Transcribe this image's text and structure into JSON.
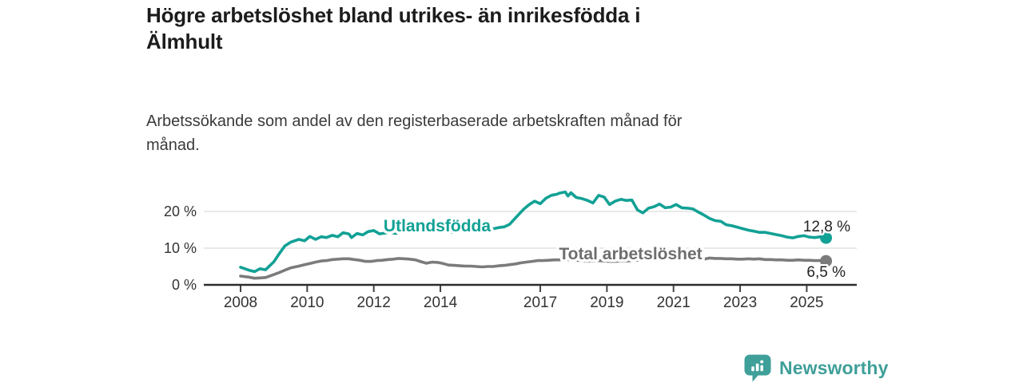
{
  "header": {
    "title_lines": [
      "Högre arbetslöshet bland utrikes- än inrikesfödda i",
      "Älmhult"
    ],
    "subtitle_lines": [
      "Arbetssökande som andel av den registerbaserade arbetskraften månad för",
      "månad."
    ]
  },
  "footer": {
    "brand": "Newsworthy",
    "logo_icon": "bar-chart-speech-bubble-icon",
    "brand_color": "#3f9f99"
  },
  "chart_data": {
    "type": "line",
    "title": "Högre arbetslöshet bland utrikes- än inrikesfödda i Älmhult",
    "subtitle": "Arbetssökande som andel av den registerbaserade arbetskraften månad för månad.",
    "xlabel": "",
    "ylabel": "",
    "grid": "horizontal-only",
    "legend_position": "inline-on-lines",
    "x_ticks": [
      2008,
      2010,
      2012,
      2014,
      2017,
      2019,
      2021,
      2023,
      2025
    ],
    "x_tick_labels": [
      "2008",
      "2010",
      "2012",
      "2014",
      "2017",
      "2019",
      "2021",
      "2023",
      "2025"
    ],
    "y_ticks": [
      0,
      10,
      20
    ],
    "y_tick_labels": [
      "0 %",
      "10 %",
      "20 %"
    ],
    "xlim": [
      2007.85,
      2026.5
    ],
    "ylim": [
      0,
      27
    ],
    "axis_color": "#2b2b2b",
    "gridline_color": "#dcdcdc",
    "series": [
      {
        "name": "Utlandsfödda",
        "color": "#12a195",
        "end_label": "12,8 %",
        "final_value": 12.8,
        "x": [
          2008.0,
          2008.25,
          2008.42,
          2008.58,
          2008.75,
          2009.0,
          2009.17,
          2009.33,
          2009.5,
          2009.75,
          2009.92,
          2010.08,
          2010.25,
          2010.42,
          2010.58,
          2010.75,
          2010.92,
          2011.08,
          2011.25,
          2011.33,
          2011.5,
          2011.67,
          2011.83,
          2012.0,
          2012.17,
          2012.33,
          2012.5,
          2012.67,
          2012.83,
          2013.0,
          2013.17,
          2013.33,
          2013.5,
          2013.67,
          2013.83,
          2014.0,
          2014.25,
          2014.5,
          2014.75,
          2015.0,
          2015.25,
          2015.5,
          2015.75,
          2015.92,
          2016.08,
          2016.25,
          2016.5,
          2016.67,
          2016.83,
          2017.0,
          2017.17,
          2017.33,
          2017.5,
          2017.58,
          2017.75,
          2017.83,
          2017.92,
          2018.08,
          2018.25,
          2018.42,
          2018.58,
          2018.75,
          2018.92,
          2019.08,
          2019.25,
          2019.42,
          2019.58,
          2019.75,
          2019.92,
          2020.08,
          2020.25,
          2020.42,
          2020.58,
          2020.75,
          2020.92,
          2021.08,
          2021.25,
          2021.42,
          2021.58,
          2021.75,
          2021.92,
          2022.08,
          2022.25,
          2022.42,
          2022.58,
          2022.75,
          2022.92,
          2023.08,
          2023.25,
          2023.42,
          2023.58,
          2023.75,
          2023.92,
          2024.08,
          2024.25,
          2024.42,
          2024.58,
          2024.75,
          2024.92,
          2025.08,
          2025.25,
          2025.42,
          2025.58
        ],
        "y": [
          4.8,
          4.0,
          3.6,
          4.4,
          4.1,
          6.3,
          8.6,
          10.6,
          11.6,
          12.4,
          12.0,
          13.2,
          12.4,
          13.1,
          12.9,
          13.5,
          13.1,
          14.2,
          13.9,
          12.9,
          14.0,
          13.6,
          14.5,
          14.8,
          13.9,
          14.1,
          14.3,
          14.0,
          14.9,
          15.0,
          14.3,
          14.5,
          14.3,
          14.6,
          14.4,
          14.6,
          14.3,
          14.5,
          14.8,
          14.9,
          14.7,
          15.1,
          15.6,
          15.8,
          16.5,
          18.2,
          20.6,
          21.9,
          22.8,
          22.1,
          23.6,
          24.4,
          24.7,
          25.0,
          25.3,
          24.2,
          25.1,
          23.8,
          23.5,
          23.0,
          22.3,
          24.4,
          23.9,
          21.9,
          22.8,
          23.3,
          23.0,
          23.1,
          20.4,
          19.6,
          20.9,
          21.3,
          22.0,
          21.0,
          21.2,
          21.9,
          21.0,
          20.9,
          20.7,
          19.8,
          19.0,
          18.1,
          17.5,
          17.3,
          16.4,
          16.1,
          15.7,
          15.3,
          14.9,
          14.6,
          14.3,
          14.3,
          14.0,
          13.7,
          13.4,
          13.0,
          12.8,
          13.2,
          13.4,
          13.0,
          12.9,
          13.1,
          12.8
        ]
      },
      {
        "name": "Total arbetslöshet",
        "color": "#7b7b7b",
        "label_color": "#6e6e6e",
        "end_label": "6,5 %",
        "final_value": 6.5,
        "x": [
          2008.0,
          2008.25,
          2008.42,
          2008.58,
          2008.75,
          2009.0,
          2009.17,
          2009.33,
          2009.5,
          2009.75,
          2009.92,
          2010.08,
          2010.25,
          2010.42,
          2010.58,
          2010.75,
          2010.92,
          2011.08,
          2011.25,
          2011.42,
          2011.58,
          2011.75,
          2011.92,
          2012.08,
          2012.25,
          2012.42,
          2012.58,
          2012.75,
          2012.92,
          2013.08,
          2013.25,
          2013.42,
          2013.58,
          2013.75,
          2013.92,
          2014.08,
          2014.25,
          2014.42,
          2014.58,
          2014.75,
          2014.92,
          2015.08,
          2015.25,
          2015.42,
          2015.58,
          2015.75,
          2015.92,
          2016.08,
          2016.25,
          2016.42,
          2016.58,
          2016.75,
          2016.92,
          2017.08,
          2017.25,
          2017.42,
          2017.58,
          2017.75,
          2017.92,
          2018.08,
          2018.25,
          2018.42,
          2018.58,
          2018.75,
          2018.92,
          2019.08,
          2019.25,
          2019.42,
          2019.58,
          2019.75,
          2019.92,
          2020.08,
          2020.25,
          2020.42,
          2020.58,
          2020.75,
          2020.92,
          2021.08,
          2021.25,
          2021.42,
          2021.58,
          2021.75,
          2021.92,
          2022.08,
          2022.25,
          2022.42,
          2022.58,
          2022.75,
          2022.92,
          2023.08,
          2023.25,
          2023.42,
          2023.58,
          2023.75,
          2023.92,
          2024.08,
          2024.25,
          2024.42,
          2024.58,
          2024.75,
          2024.92,
          2025.08,
          2025.25,
          2025.42,
          2025.58
        ],
        "y": [
          2.4,
          2.1,
          1.8,
          1.9,
          2.0,
          2.8,
          3.4,
          4.0,
          4.6,
          5.1,
          5.5,
          5.8,
          6.2,
          6.5,
          6.6,
          6.9,
          7.0,
          7.1,
          7.1,
          6.9,
          6.7,
          6.4,
          6.4,
          6.6,
          6.7,
          6.9,
          7.0,
          7.2,
          7.1,
          7.0,
          6.8,
          6.3,
          5.9,
          6.2,
          6.1,
          5.8,
          5.4,
          5.3,
          5.2,
          5.1,
          5.1,
          5.0,
          4.9,
          5.0,
          5.0,
          5.2,
          5.3,
          5.5,
          5.7,
          6.0,
          6.2,
          6.4,
          6.6,
          6.6,
          6.7,
          6.8,
          6.8,
          6.9,
          6.8,
          6.7,
          6.6,
          6.5,
          6.5,
          6.6,
          6.5,
          6.4,
          6.4,
          6.5,
          6.5,
          6.6,
          6.7,
          7.0,
          7.4,
          7.6,
          7.5,
          7.4,
          7.4,
          7.3,
          7.2,
          7.0,
          6.9,
          6.9,
          7.0,
          7.3,
          7.2,
          7.2,
          7.1,
          7.1,
          7.0,
          7.0,
          7.1,
          7.0,
          7.1,
          6.9,
          6.9,
          6.8,
          6.8,
          6.7,
          6.7,
          6.8,
          6.7,
          6.7,
          6.6,
          6.6,
          6.5
        ]
      }
    ]
  }
}
